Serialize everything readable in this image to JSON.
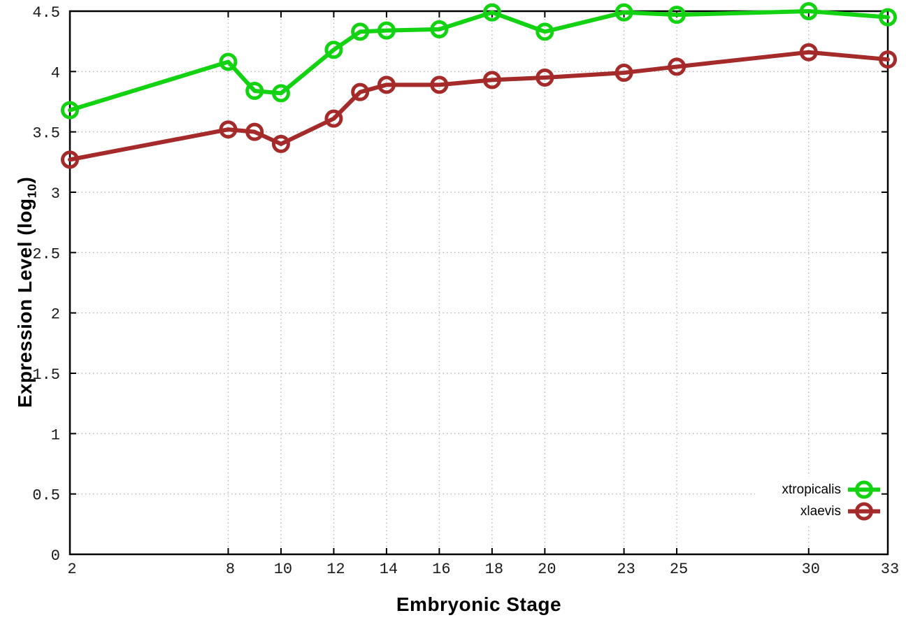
{
  "chart_data": {
    "type": "line",
    "title": "",
    "xlabel": "Embryonic Stage",
    "ylabel": "Expression Level (log10)",
    "ylabel_parts": {
      "prefix": "Expression Level (log",
      "sub": "10",
      "suffix": ")"
    },
    "x": [
      2,
      8,
      9,
      10,
      12,
      13,
      14,
      16,
      18,
      20,
      23,
      25,
      30,
      33
    ],
    "x_tick_values": [
      2,
      8,
      10,
      12,
      14,
      16,
      18,
      20,
      23,
      25,
      30,
      33
    ],
    "x_tick_labels": [
      "2",
      "8",
      "10",
      "12",
      "14",
      "16",
      "18",
      "20",
      "23",
      "25",
      "30",
      "33"
    ],
    "y_tick_values": [
      0,
      0.5,
      1,
      1.5,
      2,
      2.5,
      3,
      3.5,
      4,
      4.5
    ],
    "y_tick_labels": [
      "0",
      "0.5",
      "1",
      "1.5",
      "2",
      "2.5",
      "3",
      "3.5",
      "4",
      "4.5"
    ],
    "xlim": [
      2,
      33
    ],
    "ylim": [
      0,
      4.5
    ],
    "grid": true,
    "legend_position": "bottom-right",
    "series": [
      {
        "name": "xtropicalis",
        "color": "#12d212",
        "marker": "open-circle",
        "values": [
          3.68,
          4.08,
          3.84,
          3.82,
          4.18,
          4.33,
          4.34,
          4.35,
          4.49,
          4.33,
          4.49,
          4.47,
          4.5,
          4.45
        ]
      },
      {
        "name": "xlaevis",
        "color": "#a52a2a",
        "marker": "open-circle",
        "values": [
          3.27,
          3.52,
          3.5,
          3.4,
          3.61,
          3.83,
          3.89,
          3.89,
          3.93,
          3.95,
          3.99,
          4.04,
          4.16,
          4.1
        ]
      }
    ]
  },
  "colors": {
    "background": "#ffffff",
    "axis": "#000000",
    "grid": "#b8b8b8",
    "text": "#000000"
  }
}
